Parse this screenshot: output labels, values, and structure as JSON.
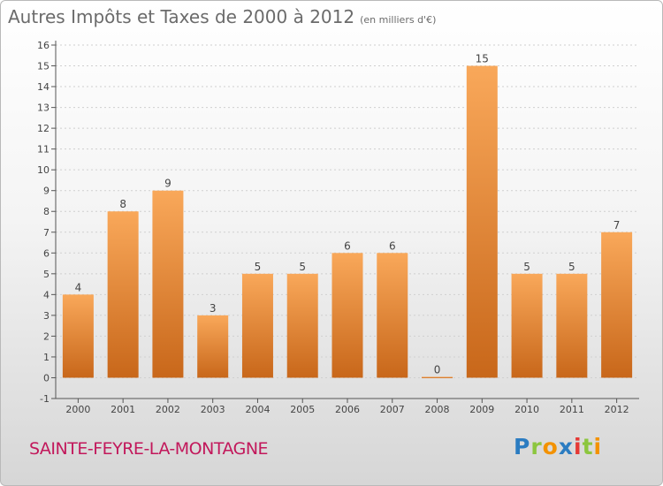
{
  "header": {
    "title": "Autres Impôts et Taxes de 2000 à 2012",
    "subtitle": "(en milliers d'€)"
  },
  "footer": {
    "commune": "SAINTE-FEYRE-LA-MONTAGNE",
    "logo": {
      "letters": [
        "P",
        "r",
        "o",
        "x",
        "i",
        "t",
        "i"
      ],
      "colors": [
        "#2b7cc1",
        "#8cc63f",
        "#f39200",
        "#2b7cc1",
        "#e53935",
        "#8cc63f",
        "#f39200"
      ]
    }
  },
  "colors": {
    "bar_top": "#f9a85a",
    "bar_bottom": "#c8671a",
    "axis": "#555555",
    "grid": "#cfcfcf"
  },
  "chart_data": {
    "type": "bar",
    "title": "Autres Impôts et Taxes de 2000 à 2012",
    "subtitle": "(en milliers d'€)",
    "categories": [
      "2000",
      "2001",
      "2002",
      "2003",
      "2004",
      "2005",
      "2006",
      "2007",
      "2008",
      "2009",
      "2010",
      "2011",
      "2012"
    ],
    "values": [
      4,
      8,
      9,
      3,
      5,
      5,
      6,
      6,
      0,
      15,
      5,
      5,
      7
    ],
    "value_labels": [
      "4",
      "8",
      "9",
      "3",
      "5",
      "5",
      "6",
      "6",
      "0",
      "15",
      "5",
      "5",
      "7"
    ],
    "yticks": [
      "-1",
      "0",
      "1",
      "2",
      "3",
      "4",
      "5",
      "6",
      "7",
      "8",
      "9",
      "10",
      "11",
      "12",
      "13",
      "14",
      "15",
      "16"
    ],
    "ylim": [
      -1,
      16
    ],
    "xlabel": "",
    "ylabel": "",
    "grid": true
  }
}
